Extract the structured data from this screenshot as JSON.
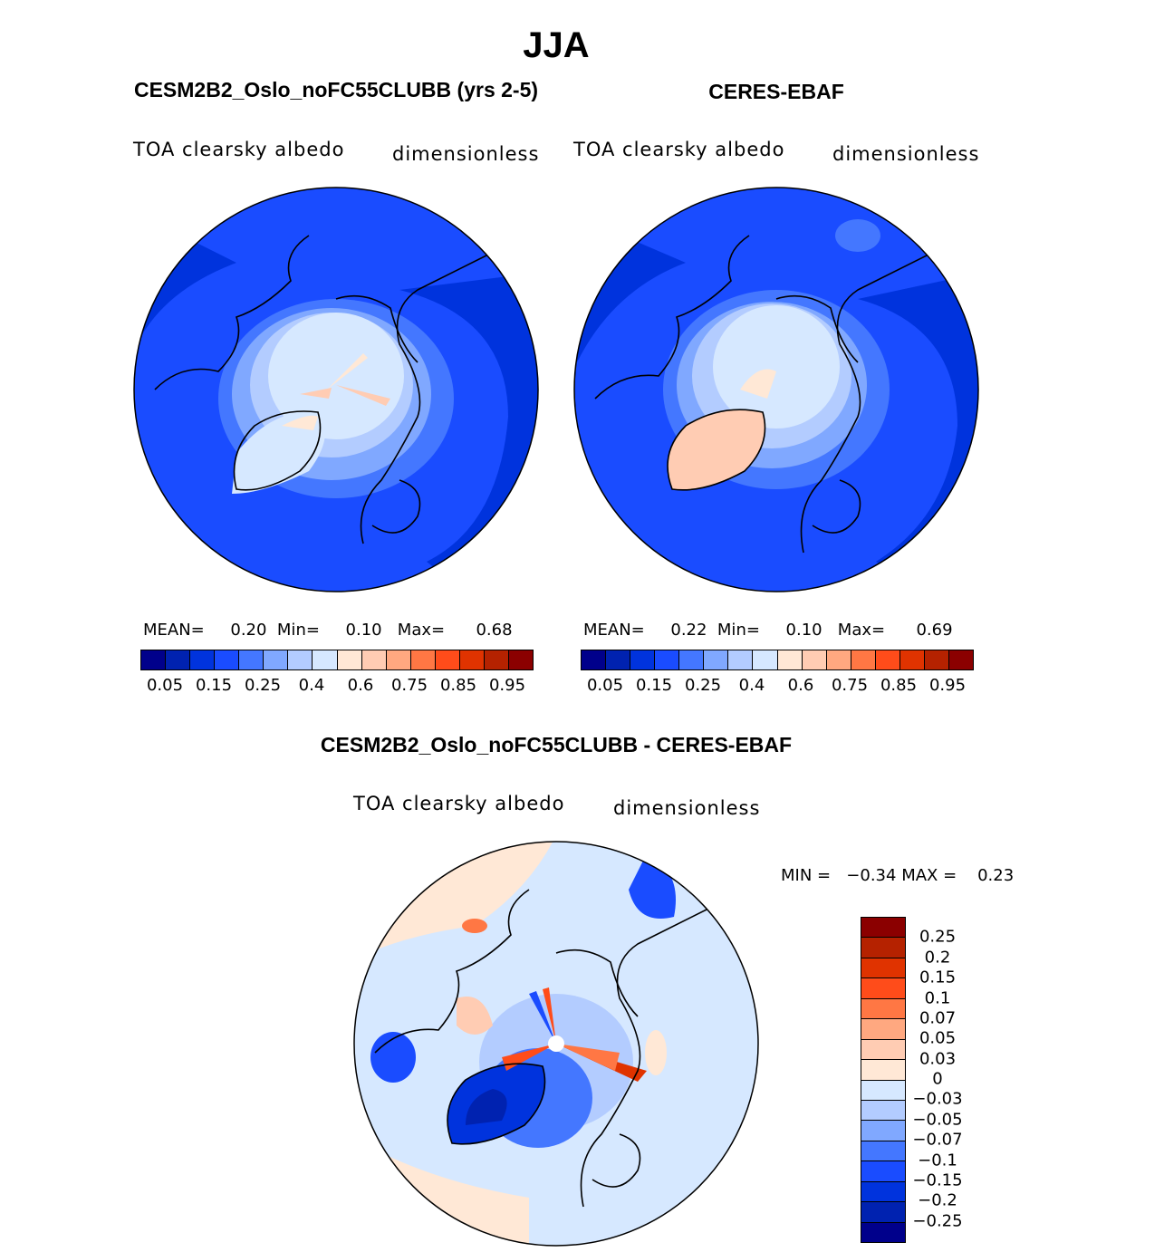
{
  "figure": {
    "title": "JJA"
  },
  "panels": [
    {
      "heading": "CESM2B2_Oslo_noFC55CLUBB (yrs 2-5)",
      "variable": "TOA clearsky albedo",
      "units": "dimensionless",
      "stats": {
        "mean_label": "MEAN=",
        "mean": "0.20",
        "min_label": "Min=",
        "min": "0.10",
        "max_label": "Max=",
        "max": "0.68"
      }
    },
    {
      "heading": "CERES-EBAF",
      "variable": "TOA clearsky albedo",
      "units": "dimensionless",
      "stats": {
        "mean_label": "MEAN=",
        "mean": "0.22",
        "min_label": "Min=",
        "min": "0.10",
        "max_label": "Max=",
        "max": "0.69"
      }
    }
  ],
  "colorbar": {
    "colors": [
      "#00008b",
      "#0022b0",
      "#0033dd",
      "#1a4cff",
      "#4477ff",
      "#80a8ff",
      "#b3ccff",
      "#d6e8ff",
      "#ffe8d6",
      "#ffccb3",
      "#ffa880",
      "#ff7744",
      "#ff4c1a",
      "#e03300",
      "#b52200",
      "#8b0000"
    ],
    "labels": [
      "0.05",
      "0.15",
      "0.25",
      "0.4",
      "0.6",
      "0.75",
      "0.85",
      "0.95"
    ]
  },
  "diff": {
    "heading": "CESM2B2_Oslo_noFC55CLUBB - CERES-EBAF",
    "variable": "TOA clearsky albedo",
    "units": "dimensionless",
    "min_label": "MIN =",
    "min": "−0.34",
    "max_label": "MAX =",
    "max": "0.23",
    "colorbar_labels_top_down": [
      "0.25",
      "0.2",
      "0.15",
      "0.1",
      "0.07",
      "0.05",
      "0.03",
      "0",
      "−0.03",
      "−0.05",
      "−0.07",
      "−0.1",
      "−0.15",
      "−0.2",
      "−0.25"
    ]
  }
}
